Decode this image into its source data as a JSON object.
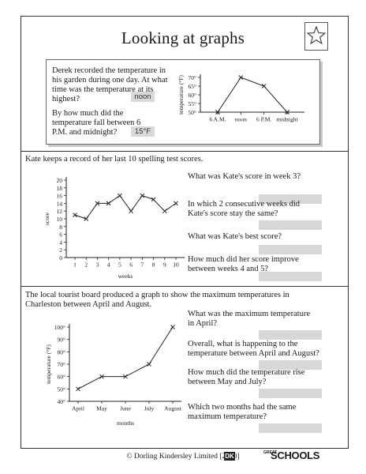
{
  "title": "Looking at graphs",
  "section1": {
    "question1": "Derek recorded the temperature in his garden during one day. At what time was the temperature at its highest?",
    "answer1": "noon",
    "question2": "By how much did the temperature fall between 6 P.M. and midnight?",
    "answer2": "15°F"
  },
  "section2": {
    "intro": "Kate keeps a record of her last 10 spelling test scores.",
    "questions": [
      "What was Kate's score in week 3?",
      "In which 2 consecutive weeks did Kate's score stay the same?",
      "What was Kate's best score?",
      "How much did her score improve between weeks 4 and 5?"
    ]
  },
  "section3": {
    "intro": "The local tourist board produced a graph to show the maximum temperatures in Charleston between April and August.",
    "questions": [
      "What was the maximum temperature in April?",
      "Overall, what is happening to the temperature between April and August?",
      "How much did the temperature rise between May and July?",
      "Which two months had the same maximum temperature?"
    ]
  },
  "footer": {
    "copyright": "© Dorling Kindersley Limited [2010]",
    "dk_mark": "DK",
    "logo_great": "GREAT",
    "logo_schools": "SCHOOLS"
  },
  "icons": {
    "star": "star-icon"
  },
  "chart_data": [
    {
      "type": "line",
      "categories": [
        "6 A.M.",
        "noon",
        "6 P.M.",
        "midnight"
      ],
      "values": [
        50,
        70,
        65,
        50
      ],
      "ylabel": "temperature (°F)",
      "yticks": [
        "50°",
        "55°",
        "60°",
        "65°",
        "70°"
      ],
      "ylim": [
        50,
        70
      ],
      "marker": "x"
    },
    {
      "type": "line",
      "x": [
        1,
        2,
        3,
        4,
        5,
        6,
        7,
        8,
        9,
        10
      ],
      "values": [
        11,
        10,
        14,
        14,
        16,
        12,
        16,
        15,
        12,
        14
      ],
      "xlabel": "weeks",
      "ylabel": "score",
      "yticks": [
        0,
        2,
        4,
        6,
        8,
        10,
        12,
        14,
        16,
        18,
        20
      ],
      "ylim": [
        0,
        20
      ],
      "marker": "x"
    },
    {
      "type": "line",
      "categories": [
        "April",
        "May",
        "June",
        "July",
        "August"
      ],
      "values": [
        50,
        60,
        60,
        70,
        100
      ],
      "xlabel": "months",
      "ylabel": "temperature (°F)",
      "yticks": [
        "40°",
        "50°",
        "60°",
        "70°",
        "80°",
        "90°",
        "100°"
      ],
      "ylim": [
        40,
        100
      ],
      "marker": "x"
    }
  ]
}
